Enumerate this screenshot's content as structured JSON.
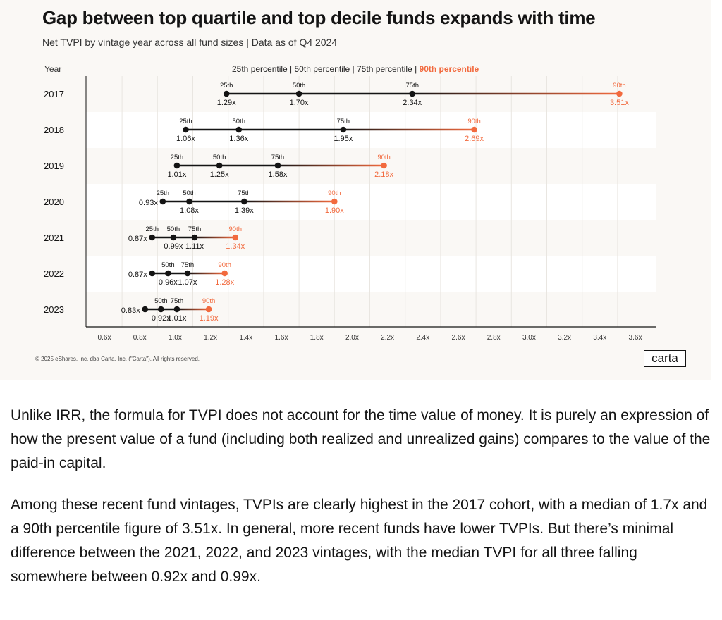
{
  "chart_data": {
    "type": "dumbbell",
    "title": "Gap between top quartile and top decile funds expands with time",
    "subtitle": "Net TVPI by vintage year across all fund sizes | Data as of Q4 2024",
    "y_axis_header": "Year",
    "legend": {
      "text": "25th percentile | 50th percentile | 75th percentile | ",
      "highlight": "90th percentile"
    },
    "xlim": [
      0.5,
      3.65
    ],
    "x_ticks": [
      0.6,
      0.8,
      1.0,
      1.2,
      1.4,
      1.6,
      1.8,
      2.0,
      2.2,
      2.4,
      2.6,
      2.8,
      3.0,
      3.2,
      3.4,
      3.6
    ],
    "x_tick_labels": [
      "0.6x",
      "0.8x",
      "1.0x",
      "1.2x",
      "1.4x",
      "1.6x",
      "1.8x",
      "2.0x",
      "2.2x",
      "2.4x",
      "2.6x",
      "2.8x",
      "3.0x",
      "3.2x",
      "3.4x",
      "3.6x"
    ],
    "colors": {
      "base": "#141414",
      "p90": "#f26a3e",
      "band": "#ffffff",
      "grid": "#e9e6e1"
    },
    "rows": [
      {
        "year": "2017",
        "p25": 1.29,
        "p50": 1.7,
        "p75": 2.34,
        "p90": 3.51,
        "top": [
          "25th",
          "50th",
          "75th",
          "90th"
        ],
        "bottom": [
          "1.29x",
          "1.70x",
          "2.34x",
          "3.51x"
        ],
        "left": ""
      },
      {
        "year": "2018",
        "p25": 1.06,
        "p50": 1.36,
        "p75": 1.95,
        "p90": 2.69,
        "top": [
          "25th",
          "50th",
          "75th",
          "90th"
        ],
        "bottom": [
          "1.06x",
          "1.36x",
          "1.95x",
          "2.69x"
        ],
        "left": ""
      },
      {
        "year": "2019",
        "p25": 1.01,
        "p50": 1.25,
        "p75": 1.58,
        "p90": 2.18,
        "top": [
          "25th",
          "50th",
          "75th",
          "90th"
        ],
        "bottom": [
          "1.01x",
          "1.25x",
          "1.58x",
          "2.18x"
        ],
        "left": ""
      },
      {
        "year": "2020",
        "p25": 0.93,
        "p50": 1.08,
        "p75": 1.39,
        "p90": 1.9,
        "top": [
          "25th",
          "50th",
          "75th",
          "90th"
        ],
        "bottom": [
          "",
          "1.08x",
          "1.39x",
          "1.90x"
        ],
        "left": "0.93x"
      },
      {
        "year": "2021",
        "p25": 0.87,
        "p50": 0.99,
        "p75": 1.11,
        "p90": 1.34,
        "top": [
          "25th",
          "50th",
          "75th",
          "90th"
        ],
        "bottom": [
          "",
          "0.99x",
          "1.11x",
          "1.34x"
        ],
        "left": "0.87x"
      },
      {
        "year": "2022",
        "p25": 0.87,
        "p50": 0.96,
        "p75": 1.07,
        "p90": 1.28,
        "top": [
          "",
          "50th",
          "75th",
          "90th"
        ],
        "bottom": [
          "",
          "0.96x",
          "1.07x",
          "1.28x"
        ],
        "left": "0.87x"
      },
      {
        "year": "2023",
        "p25": 0.83,
        "p50": 0.92,
        "p75": 1.01,
        "p90": 1.19,
        "top": [
          "",
          "50th",
          "75th",
          "90th"
        ],
        "bottom": [
          "",
          "0.92x",
          "1.01x",
          "1.19x"
        ],
        "left": "0.83x"
      }
    ]
  },
  "footer": {
    "copyright": "© 2025 eShares, Inc. dba Carta, Inc. (\"Carta\"). All rights reserved.",
    "logo": "carta"
  },
  "article": {
    "p1": "Unlike IRR, the formula for TVPI does not account for the time value of money. It is purely an expression of how the present value of a fund (including both realized and unrealized gains) compares to the value of the paid-in capital.",
    "p2": "Among these recent fund vintages, TVPIs are clearly highest in the 2017 cohort, with a median of 1.7x and a 90th percentile figure of 3.51x. In general, more recent funds have lower TVPIs. But there’s minimal difference between the 2021, 2022, and 2023 vintages, with the median TVPI for all three falling somewhere between 0.92x and 0.99x."
  }
}
